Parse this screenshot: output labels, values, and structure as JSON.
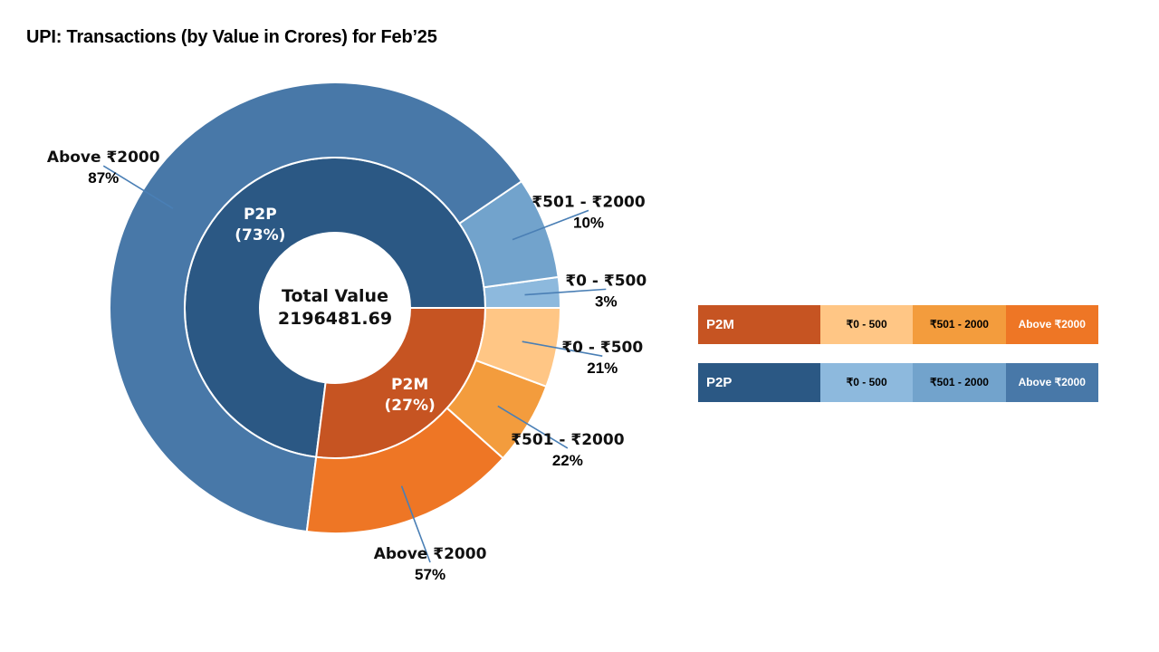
{
  "title": "UPI: Transactions (by Value in Crores) for Feb’25",
  "chart_data": {
    "type": "pie",
    "subtype": "nested-donut",
    "center_label": "Total Value",
    "center_value": "2196481.69",
    "inner": [
      {
        "name": "P2P",
        "label": "P2P",
        "pct_label": "(73%)",
        "share": 73,
        "color": "#2B5884"
      },
      {
        "name": "P2M",
        "label": "P2M",
        "pct_label": "(27%)",
        "share": 27,
        "color": "#C65422"
      }
    ],
    "outer": [
      {
        "parent": "P2P",
        "name": "₹0 - ₹500",
        "pct": "3%",
        "share_of_parent": 3,
        "color": "#8DB9DD"
      },
      {
        "parent": "P2P",
        "name": "₹501 - ₹2000",
        "pct": "10%",
        "share_of_parent": 10,
        "color": "#72A3CC"
      },
      {
        "parent": "P2P",
        "name": "Above ₹2000",
        "pct": "87%",
        "share_of_parent": 87,
        "color": "#4878A8"
      },
      {
        "parent": "P2M",
        "name": "Above ₹2000",
        "pct": "57%",
        "share_of_parent": 57,
        "color": "#EE7625"
      },
      {
        "parent": "P2M",
        "name": "₹501 - ₹2000",
        "pct": "22%",
        "share_of_parent": 22,
        "color": "#F39C3D"
      },
      {
        "parent": "P2M",
        "name": "₹0 - ₹500",
        "pct": "21%",
        "share_of_parent": 21,
        "color": "#FFC685"
      }
    ]
  },
  "legend": [
    {
      "group": "P2M",
      "color": "#C65422",
      "items": [
        {
          "label": "₹0 - 500",
          "color": "#FFC685",
          "text_color": "#000000"
        },
        {
          "label": "₹501 - 2000",
          "color": "#F39C3D",
          "text_color": "#000000"
        },
        {
          "label": "Above ₹2000",
          "color": "#EE7625",
          "text_color": "#ffffff"
        }
      ]
    },
    {
      "group": "P2P",
      "color": "#2B5884",
      "items": [
        {
          "label": "₹0 - 500",
          "color": "#8DB9DD",
          "text_color": "#000000"
        },
        {
          "label": "₹501 - 2000",
          "color": "#72A3CC",
          "text_color": "#000000"
        },
        {
          "label": "Above ₹2000",
          "color": "#4878A8",
          "text_color": "#ffffff"
        }
      ]
    }
  ]
}
